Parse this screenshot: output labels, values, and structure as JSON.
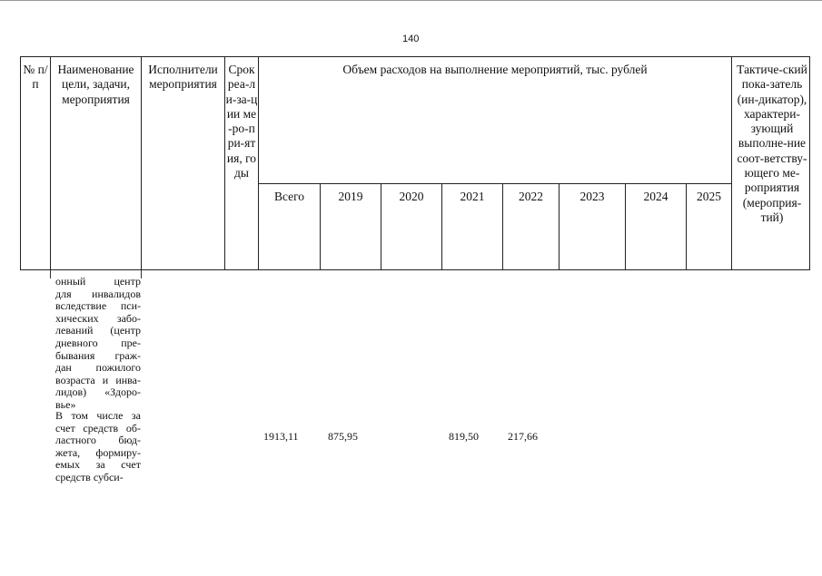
{
  "page_number": "140",
  "header": {
    "col_no": "№ п/п",
    "col_name": "Наименование цели, задачи, мероприятия",
    "col_exec": "Исполнители мероприятия",
    "col_term": "Срок реа-ли-за-ции ме-ро-при-ятия, годы",
    "col_expenses": "Объем расходов на выполнение мероприятий, тыс. рублей",
    "col_total": "Всего",
    "years": [
      "2019",
      "2020",
      "2021",
      "2022",
      "2023",
      "2024",
      "2025"
    ],
    "col_indicator": "Тактиче-ский пока-затель (ин-дикатор), характери-зующий выполне-ние соот-ветству-ющего ме-роприятия (мероприя-тий)"
  },
  "rows": [
    {
      "name_lines": [
        "онный центр",
        "для инвалидов",
        "вследствие пси-",
        "хических забо-",
        "леваний (центр",
        "дневного пре-",
        "бывания граж-",
        "дан пожилого",
        "возраста и инва-",
        "лидов) «Здоро-",
        "вье»"
      ]
    },
    {
      "name_lines": [
        "В том числе за",
        "счет средств об-",
        "ластного бюд-",
        "жета, формиру-",
        "емых за счет",
        "средств субси-"
      ],
      "total": "1913,11",
      "y2019": "875,95",
      "y2021": "819,50",
      "y2022": "217,66"
    }
  ]
}
